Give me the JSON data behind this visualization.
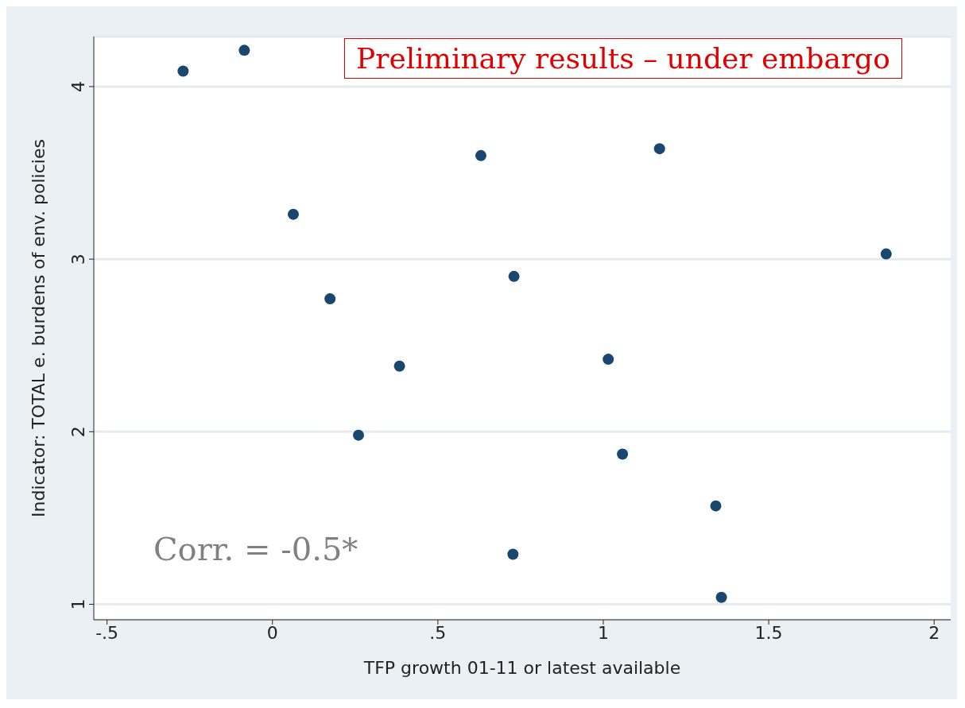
{
  "chart_data": {
    "type": "scatter",
    "xlabel": "TFP growth 01-11 or latest available",
    "ylabel": "Indicator: TOTAL e. burdens of env. policies",
    "x": [
      -0.27,
      -0.085,
      0.63,
      1.17,
      0.063,
      1.855,
      0.73,
      0.174,
      1.015,
      0.384,
      0.26,
      1.058,
      1.34,
      0.727,
      1.357
    ],
    "values": [
      4.09,
      4.21,
      3.6,
      3.64,
      3.26,
      3.03,
      2.9,
      2.77,
      2.42,
      2.38,
      1.98,
      1.87,
      1.57,
      1.29,
      1.04
    ],
    "color": "#1a476f",
    "marker": "circle",
    "xlim": [
      -0.54,
      2.05
    ],
    "xticks": [
      {
        "value": -0.5,
        "label": "-.5"
      },
      0,
      {
        "value": 0.5,
        "label": ".5"
      },
      1,
      1.5,
      2
    ],
    "ylim": [
      0.91,
      4.29
    ],
    "yticks": [
      1,
      2,
      3,
      4
    ],
    "grid": "y",
    "annotations": [
      "Preliminary results – under embargo",
      "Corr. = -0.5*"
    ]
  }
}
